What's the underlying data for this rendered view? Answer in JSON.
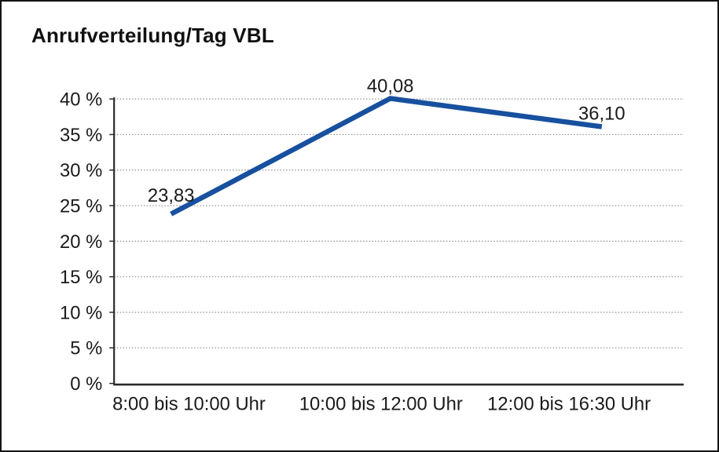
{
  "header": {
    "title": "Anrufverteilung/Tag VBL"
  },
  "chart_data": {
    "type": "line",
    "title": "Anrufverteilung/Tag VBL",
    "categories": [
      "8:00 bis 10:00 Uhr",
      "10:00 bis 12:00 Uhr",
      "12:00 bis 16:30 Uhr"
    ],
    "values": [
      23.83,
      40.08,
      36.1
    ],
    "data_labels": [
      "23,83",
      "40,08",
      "36,10"
    ],
    "series_name": "Anrufverteilung/Tag VBL",
    "xlabel": "",
    "ylabel": "",
    "ylim": [
      0,
      40
    ],
    "ytick_step": 5,
    "ytick_labels": [
      "0 %",
      "5 %",
      "10 %",
      "15 %",
      "20 %",
      "25 %",
      "30 %",
      "35 %",
      "40 %"
    ],
    "grid": "horizontal-dotted",
    "legend": "none"
  },
  "colors": {
    "line": "#17509e",
    "grid": "#8f8f8f",
    "axis": "#2b2b2b",
    "text": "#1a1a1a",
    "background": "#ffffff",
    "border": "#141414"
  }
}
